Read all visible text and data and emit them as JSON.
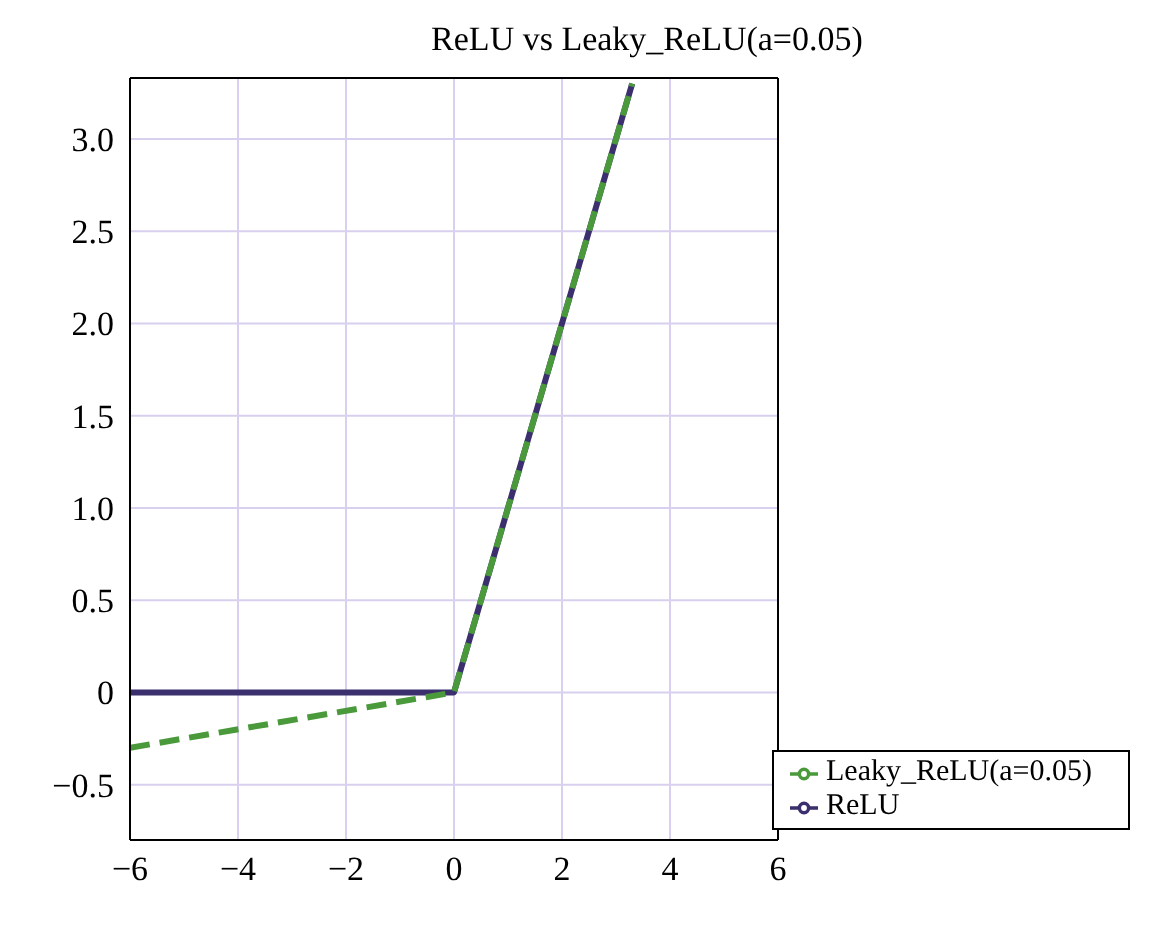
{
  "chart_data": {
    "type": "line",
    "title": "ReLU vs Leaky_ReLU(a=0.05)",
    "series": [
      {
        "name": "ReLU",
        "color": "#3b2f6e",
        "line_style": "solid",
        "x": [
          -6,
          0,
          3.3
        ],
        "values": [
          0,
          0,
          3.3
        ]
      },
      {
        "name": "Leaky_ReLU(a=0.05)",
        "color": "#4a9a3c",
        "line_style": "dashed",
        "x": [
          -6,
          0,
          3.3
        ],
        "values": [
          -0.3,
          0,
          3.3
        ]
      }
    ],
    "xlim": [
      -6,
      6
    ],
    "xticks": [
      {
        "value": -6,
        "label": "−6"
      },
      {
        "value": -4,
        "label": "−4"
      },
      {
        "value": -2,
        "label": "−2"
      },
      0,
      2,
      4,
      6
    ],
    "ylim": [
      -0.8,
      3.33
    ],
    "yticks": [
      {
        "value": -0.5,
        "label": "−0.5"
      },
      0,
      0.5,
      {
        "value": 1,
        "label": "1.0"
      },
      1.5,
      {
        "value": 2,
        "label": "2.0"
      },
      2.5,
      {
        "value": 3,
        "label": "3.0"
      }
    ],
    "grid": true,
    "legend": "bottom right",
    "marker": "none"
  }
}
